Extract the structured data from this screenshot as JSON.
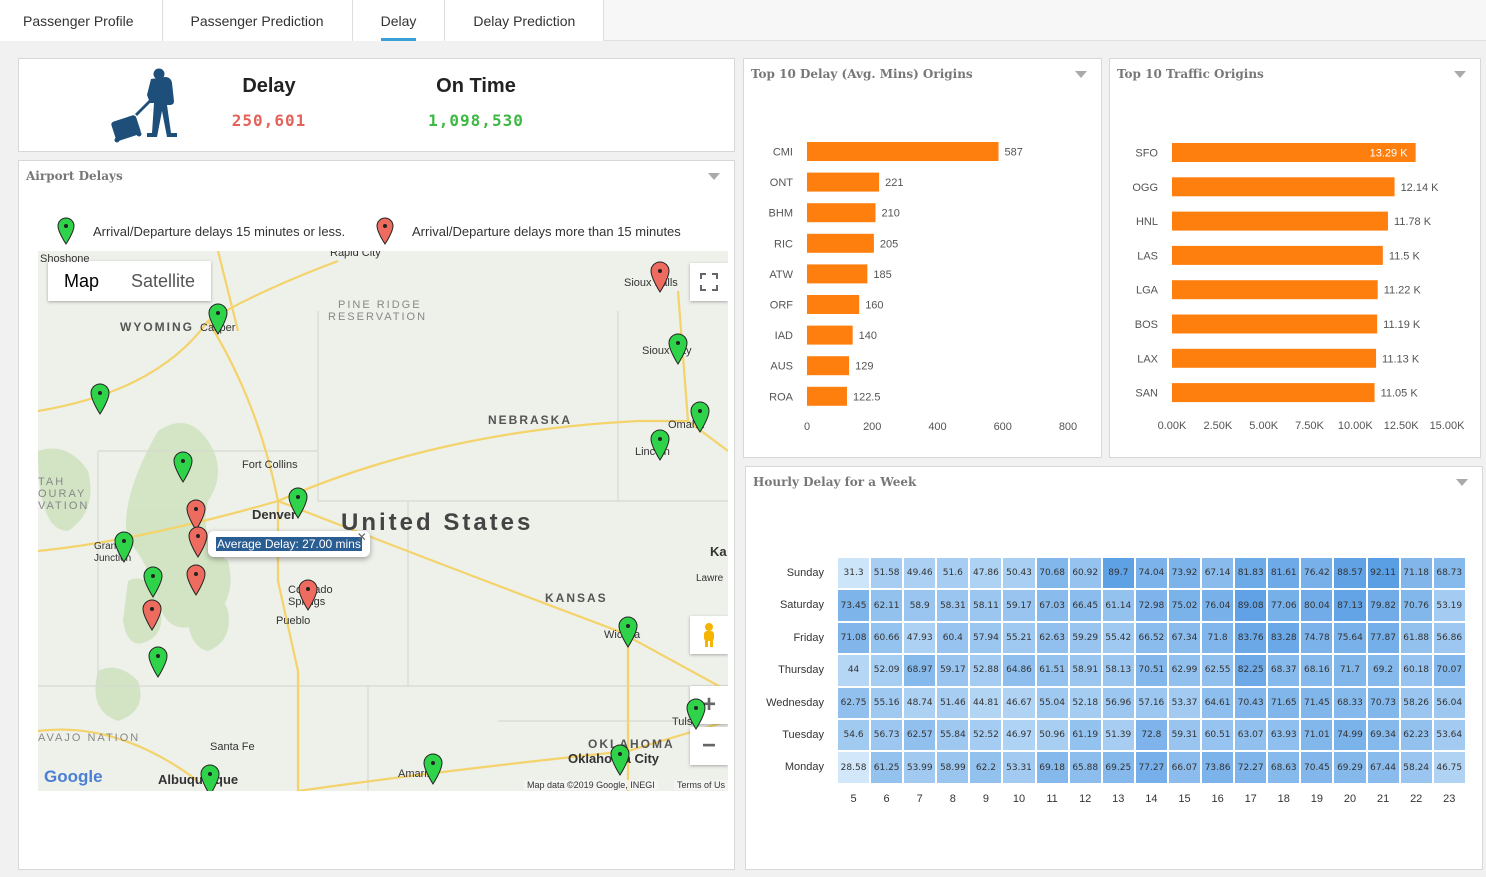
{
  "tabs": [
    "Passenger Profile",
    "Passenger Prediction",
    "Delay",
    "Delay Prediction"
  ],
  "active_tab": 2,
  "kpi": {
    "delay_label": "Delay",
    "delay_value": "250,601",
    "ontime_label": "On Time",
    "ontime_value": "1,098,530",
    "delay_color": "#e5625b",
    "ontime_color": "#3db843"
  },
  "airport_delays": {
    "title": "Airport Delays",
    "legend_green": "Arrival/Departure delays 15 minutes or less.",
    "legend_red": "Arrival/Departure delays more than 15 minutes",
    "map_toggle": [
      "Map",
      "Satellite"
    ],
    "tooltip": "Average Delay: 27.00 mins",
    "attribution": "Map data ©2019 Google, INEGI",
    "terms": "Terms of Us",
    "google": "Google",
    "region_labels": [
      "WYOMING",
      "NEBRASKA",
      "KANSAS",
      "OKLAHOMA",
      "United States",
      "PINE RIDGE",
      "RESERVATION",
      "TAH",
      "OURAY",
      "VATION",
      "AVAJO NATION"
    ],
    "city_labels": [
      "Casper",
      "Sioux Falls",
      "Sioux City",
      "Omaha",
      "Lincoln",
      "Fort Collins",
      "Denver",
      "Grand Junction",
      "Colorado Springs",
      "Pueblo",
      "Wichita",
      "Tulsa",
      "Santa Fe",
      "Albuquerque",
      "Amarillo",
      "Oklahoma City",
      "Rapid City",
      "Shoshone",
      "Ka",
      "Lawre"
    ]
  },
  "top_delay": {
    "title": "Top 10 Delay (Avg. Mins) Origins",
    "bar_color": "#ff7f0e"
  },
  "top_traffic": {
    "title": "Top 10 Traffic Origins",
    "bar_color": "#ff7f0e"
  },
  "hourly": {
    "title": "Hourly Delay for a Week",
    "days": [
      "Sunday",
      "Saturday",
      "Friday",
      "Thursday",
      "Wednesday",
      "Tuesday",
      "Monday"
    ],
    "hours": [
      "5",
      "6",
      "7",
      "8",
      "9",
      "10",
      "11",
      "12",
      "13",
      "14",
      "15",
      "16",
      "17",
      "18",
      "19",
      "20",
      "21",
      "22",
      "23"
    ],
    "values": [
      [
        "31.3",
        "51.58",
        "49.46",
        "51.6",
        "47.86",
        "50.43",
        "70.68",
        "60.92",
        "89.7",
        "74.04",
        "73.92",
        "67.14",
        "81.83",
        "81.61",
        "76.42",
        "88.57",
        "92.11",
        "71.18",
        "68.73"
      ],
      [
        "73.45",
        "62.11",
        "58.9",
        "58.31",
        "58.11",
        "59.17",
        "67.03",
        "66.45",
        "61.14",
        "72.98",
        "75.02",
        "76.04",
        "89.08",
        "77.06",
        "80.04",
        "87.13",
        "79.82",
        "70.76",
        "53.19"
      ],
      [
        "71.08",
        "60.66",
        "47.93",
        "60.4",
        "57.94",
        "55.21",
        "62.63",
        "59.29",
        "55.42",
        "66.52",
        "67.34",
        "71.8",
        "83.76",
        "83.28",
        "74.78",
        "75.64",
        "77.87",
        "61.88",
        "56.86"
      ],
      [
        "44",
        "52.09",
        "68.97",
        "59.17",
        "52.88",
        "64.86",
        "61.51",
        "58.91",
        "58.13",
        "70.51",
        "62.99",
        "62.55",
        "82.25",
        "68.37",
        "68.16",
        "71.7",
        "69.2",
        "60.18",
        "70.07"
      ],
      [
        "62.75",
        "55.16",
        "48.74",
        "51.46",
        "44.81",
        "46.67",
        "55.04",
        "52.18",
        "56.96",
        "57.16",
        "53.37",
        "64.61",
        "70.43",
        "71.65",
        "71.45",
        "68.33",
        "70.73",
        "58.26",
        "56.04"
      ],
      [
        "54.6",
        "56.73",
        "62.57",
        "55.84",
        "52.52",
        "46.97",
        "50.96",
        "61.19",
        "51.39",
        "72.8",
        "59.31",
        "60.51",
        "63.07",
        "63.93",
        "71.01",
        "74.99",
        "69.34",
        "62.23",
        "53.64"
      ],
      [
        "28.58",
        "61.25",
        "53.99",
        "58.99",
        "62.2",
        "53.31",
        "69.18",
        "65.88",
        "69.25",
        "77.27",
        "66.07",
        "73.86",
        "72.27",
        "68.63",
        "70.45",
        "69.29",
        "67.44",
        "58.24",
        "46.75"
      ]
    ]
  },
  "chart_data": [
    {
      "type": "bar",
      "orientation": "horizontal",
      "title": "Top 10 Delay (Avg. Mins) Origins",
      "categories": [
        "CMI",
        "ONT",
        "BHM",
        "RIC",
        "ATW",
        "ORF",
        "IAD",
        "AUS",
        "ROA"
      ],
      "values": [
        587,
        221,
        210,
        205,
        185,
        160,
        140,
        129,
        122.5
      ],
      "data_labels": [
        "587",
        "221",
        "210",
        "205",
        "185",
        "160",
        "140",
        "129",
        "122.5"
      ],
      "xlim": [
        0,
        800
      ],
      "xticks": [
        "0",
        "200",
        "400",
        "600",
        "800"
      ]
    },
    {
      "type": "bar",
      "orientation": "horizontal",
      "title": "Top 10 Traffic Origins",
      "categories": [
        "SFO",
        "OGG",
        "HNL",
        "LAS",
        "LGA",
        "BOS",
        "LAX",
        "SAN"
      ],
      "values": [
        13290,
        12140,
        11780,
        11500,
        11220,
        11190,
        11130,
        11050
      ],
      "data_labels": [
        "13.29 K",
        "12.14 K",
        "11.78 K",
        "11.5 K",
        "11.22 K",
        "11.19 K",
        "11.13 K",
        "11.05 K"
      ],
      "xlim": [
        0,
        15000
      ],
      "xticks": [
        "0.00K",
        "2.50K",
        "5.00K",
        "7.50K",
        "10.00K",
        "12.50K",
        "15.00K"
      ]
    }
  ]
}
